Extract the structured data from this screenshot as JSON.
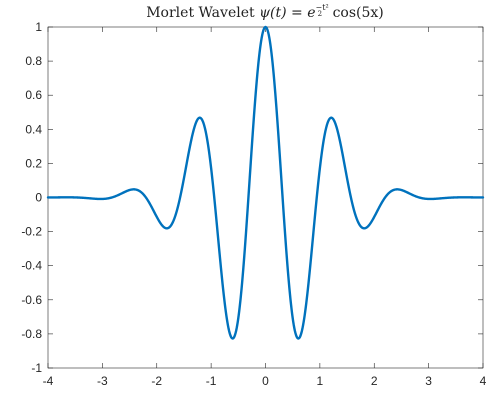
{
  "chart_data": {
    "type": "line",
    "title_prefix": "Morlet Wavelet ",
    "title_psi": "ψ(t) = e",
    "title_exp_num": "−t²",
    "title_exp_den": "2",
    "title_suffix": " cos(5x)",
    "xlabel": "",
    "ylabel": "",
    "xlim": [
      -4,
      4
    ],
    "ylim": [
      -1,
      1
    ],
    "x_ticks": [
      -4,
      -3,
      -2,
      -1,
      0,
      1,
      2,
      3,
      4
    ],
    "x_tick_labels": [
      "-4",
      "-3",
      "-2",
      "-1",
      "0",
      "1",
      "2",
      "3",
      "4"
    ],
    "y_ticks": [
      -1,
      -0.8,
      -0.6,
      -0.4,
      -0.2,
      0,
      0.2,
      0.4,
      0.6,
      0.8,
      1
    ],
    "y_tick_labels": [
      "-1",
      "-0.8",
      "-0.6",
      "-0.4",
      "-0.2",
      "0",
      "0.2",
      "0.4",
      "0.6",
      "0.8",
      "1"
    ],
    "grid": false,
    "legend": "none",
    "function": "exp(-t^2/2) * cos(5t)",
    "series": [
      {
        "color": "#0072BD",
        "x": [
          -4,
          -3.75,
          -3.5,
          -3.25,
          -3,
          -2.75,
          -2.5,
          -2.25,
          -2,
          -1.75,
          -1.5,
          -1.25,
          -1,
          -0.75,
          -0.5,
          -0.25,
          0,
          0.25,
          0.5,
          0.75,
          1,
          1.25,
          1.5,
          1.75,
          2,
          2.25,
          2.5,
          2.75,
          3,
          3.25,
          3.5,
          3.75,
          4
        ],
        "y": [
          0.0001,
          0.0009,
          0.0017,
          -0.0042,
          -0.0084,
          0.0081,
          0.0437,
          0.0348,
          -0.1139,
          -0.1869,
          0.113,
          0.4584,
          0.172,
          -0.6193,
          -0.711,
          0.3054,
          1.0,
          0.3054,
          -0.711,
          -0.6193,
          0.172,
          0.4584,
          0.113,
          -0.1869,
          -0.1139,
          0.0348,
          0.0437,
          0.0081,
          -0.0084,
          -0.0042,
          0.0017,
          0.0009,
          0.0001
        ]
      }
    ]
  }
}
